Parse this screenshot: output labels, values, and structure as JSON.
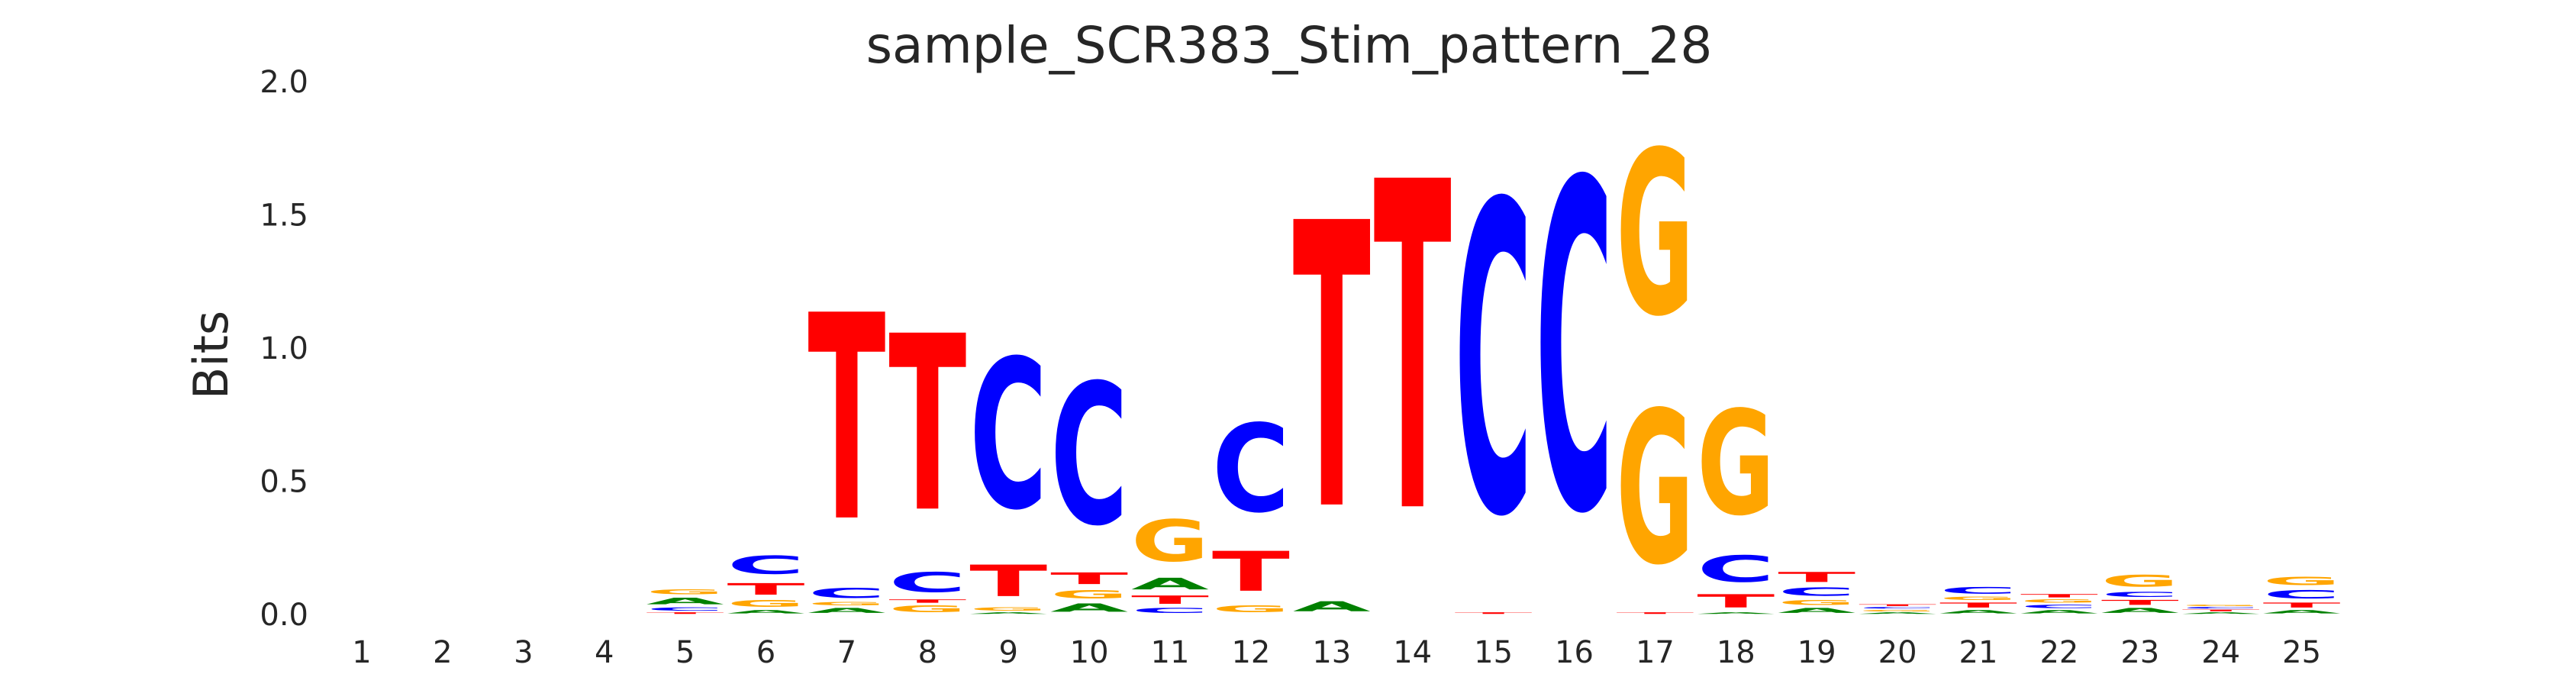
{
  "chart_data": {
    "type": "sequence-logo",
    "title": "sample_SCR383_Stim_pattern_28",
    "ylabel": "Bits",
    "xlabel": "",
    "ylim": [
      0,
      2.0
    ],
    "yticks": [
      "0.0",
      "0.5",
      "1.0",
      "1.5",
      "2.0"
    ],
    "ytick_values": [
      0,
      0.5,
      1.0,
      1.5,
      2.0
    ],
    "categories": [
      "1",
      "2",
      "3",
      "4",
      "5",
      "6",
      "7",
      "8",
      "9",
      "10",
      "11",
      "12",
      "13",
      "14",
      "15",
      "16",
      "17",
      "18",
      "19",
      "20",
      "21",
      "22",
      "23",
      "24",
      "25"
    ],
    "colors": {
      "A": "#008000",
      "C": "#0000ff",
      "G": "#ffa500",
      "T": "#ff0000"
    },
    "positions": [
      [],
      [],
      [],
      [],
      [
        [
          "T",
          0.01
        ],
        [
          "C",
          0.02
        ],
        [
          "A",
          0.04
        ],
        [
          "G",
          0.03
        ]
      ],
      [
        [
          "A",
          0.02
        ],
        [
          "G",
          0.04
        ],
        [
          "T",
          0.07
        ],
        [
          "C",
          0.11
        ]
      ],
      [
        [
          "A",
          0.03
        ],
        [
          "G",
          0.02
        ],
        [
          "C",
          0.06
        ],
        [
          "T",
          1.24
        ]
      ],
      [
        [
          "G",
          0.04
        ],
        [
          "T",
          0.02
        ],
        [
          "C",
          0.12
        ],
        [
          "T",
          1.06
        ]
      ],
      [
        [
          "A",
          0.01
        ],
        [
          "G",
          0.02
        ],
        [
          "T",
          0.19
        ],
        [
          "C",
          0.9
        ]
      ],
      [
        [
          "A",
          0.05
        ],
        [
          "G",
          0.05
        ],
        [
          "T",
          0.07
        ],
        [
          "C",
          0.85
        ]
      ],
      [
        [
          "C",
          0.03
        ],
        [
          "T",
          0.05
        ],
        [
          "A",
          0.07
        ],
        [
          "G",
          0.25
        ]
      ],
      [
        [
          "G",
          0.04
        ],
        [
          "T",
          0.24
        ],
        [
          "C",
          0.53
        ]
      ],
      [
        [
          "A",
          0.06
        ],
        [
          "T",
          1.72
        ]
      ],
      [
        [
          "T",
          1.98
        ]
      ],
      [
        [
          "T",
          0.01
        ],
        [
          "C",
          1.87
        ]
      ],
      [
        [
          "C",
          1.98
        ]
      ],
      [
        [
          "T",
          0.01
        ],
        [
          "G",
          0.92
        ],
        [
          "G",
          0.99
        ]
      ],
      [
        [
          "A",
          0.01
        ],
        [
          "T",
          0.08
        ],
        [
          "C",
          0.16
        ],
        [
          "G",
          0.63
        ]
      ],
      [
        [
          "A",
          0.03
        ],
        [
          "G",
          0.03
        ],
        [
          "C",
          0.05
        ],
        [
          "T",
          0.06
        ]
      ],
      [
        [
          "A",
          0.01
        ],
        [
          "G",
          0.01
        ],
        [
          "C",
          0.01
        ],
        [
          "T",
          0.01
        ]
      ],
      [
        [
          "A",
          0.02
        ],
        [
          "T",
          0.03
        ],
        [
          "G",
          0.02
        ],
        [
          "C",
          0.04
        ]
      ],
      [
        [
          "A",
          0.02
        ],
        [
          "C",
          0.02
        ],
        [
          "G",
          0.02
        ],
        [
          "T",
          0.02
        ]
      ],
      [
        [
          "A",
          0.03
        ],
        [
          "T",
          0.03
        ],
        [
          "C",
          0.03
        ],
        [
          "G",
          0.07
        ]
      ],
      [
        [
          "A",
          0.01
        ],
        [
          "T",
          0.01
        ],
        [
          "C",
          0.01
        ],
        [
          "G",
          0.01
        ]
      ],
      [
        [
          "A",
          0.02
        ],
        [
          "T",
          0.03
        ],
        [
          "C",
          0.05
        ],
        [
          "G",
          0.05
        ]
      ]
    ],
    "grid": false,
    "legend": "none"
  }
}
